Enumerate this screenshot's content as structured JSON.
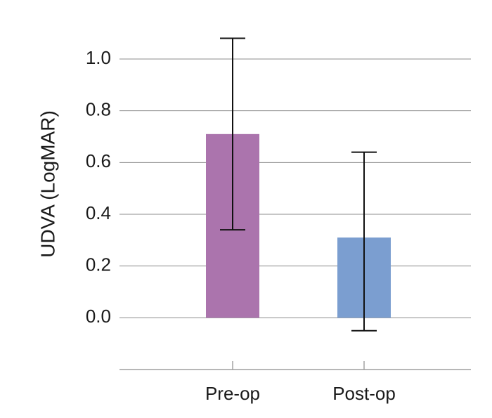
{
  "chart_data": {
    "type": "bar",
    "title": "",
    "xlabel": "",
    "ylabel": "UDVA (LogMAR)",
    "categories": [
      "Pre-op",
      "Post-op"
    ],
    "values": [
      0.71,
      0.31
    ],
    "error_low": [
      0.34,
      -0.05
    ],
    "error_high": [
      1.08,
      0.64
    ],
    "ylim": [
      -0.2,
      1.0
    ],
    "yticks": [
      "0.0",
      "0.2",
      "0.4",
      "0.6",
      "0.8",
      "1.0"
    ],
    "grid": true,
    "legend": "none",
    "colors": [
      "#ab74ad",
      "#7b9ed0"
    ]
  }
}
